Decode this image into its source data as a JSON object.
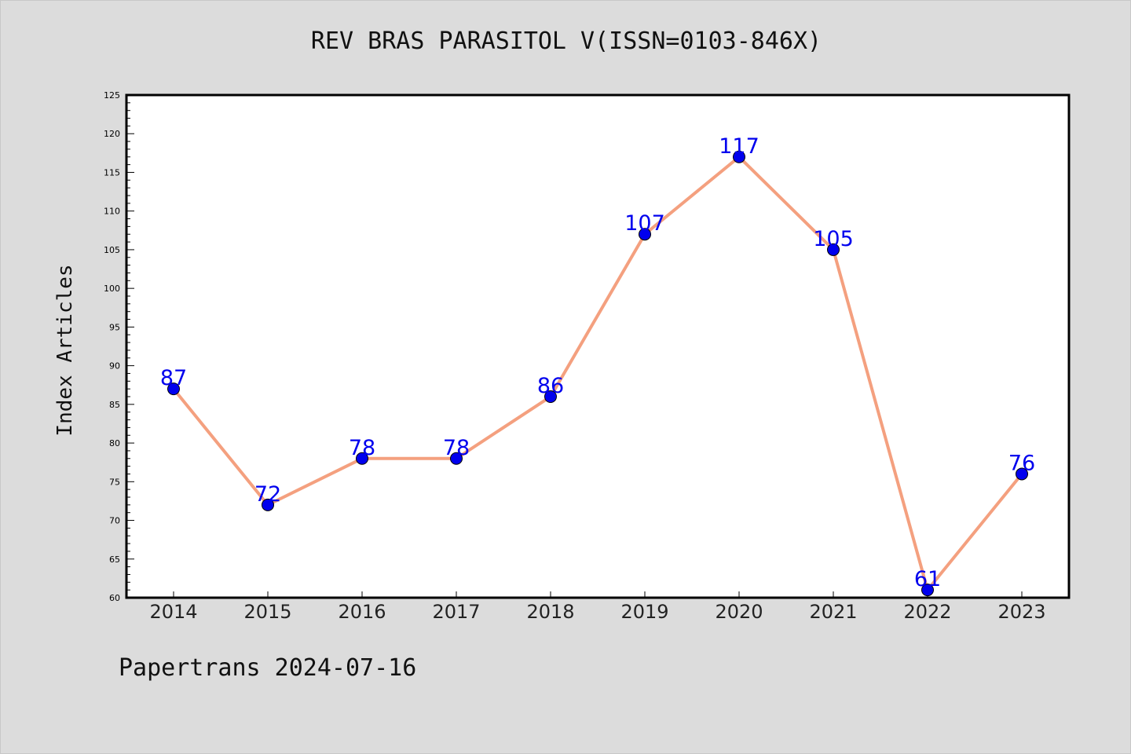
{
  "title": "REV BRAS PARASITOL V(ISSN=0103-846X)",
  "footer": "Papertrans 2024-07-16",
  "chart_data": {
    "type": "line",
    "title": "REV BRAS PARASITOL V(ISSN=0103-846X)",
    "xlabel": "",
    "ylabel": "Index Articles",
    "categories": [
      "2014",
      "2015",
      "2016",
      "2017",
      "2018",
      "2019",
      "2020",
      "2021",
      "2022",
      "2023"
    ],
    "series": [
      {
        "values": [
          87,
          72,
          78,
          78,
          86,
          107,
          117,
          105,
          61,
          76
        ]
      }
    ],
    "ylim": [
      60,
      125
    ],
    "yticks": [
      60,
      65,
      70,
      75,
      80,
      85,
      90,
      95,
      100,
      105,
      110,
      115,
      120,
      125
    ],
    "grid": false,
    "legend": "none",
    "colors": {
      "line": "#f4a07f",
      "marker": "#0000ee",
      "data_label": "#0000ee",
      "plot_background": "#ffffff",
      "figure_background": "#dcdcdc"
    }
  }
}
